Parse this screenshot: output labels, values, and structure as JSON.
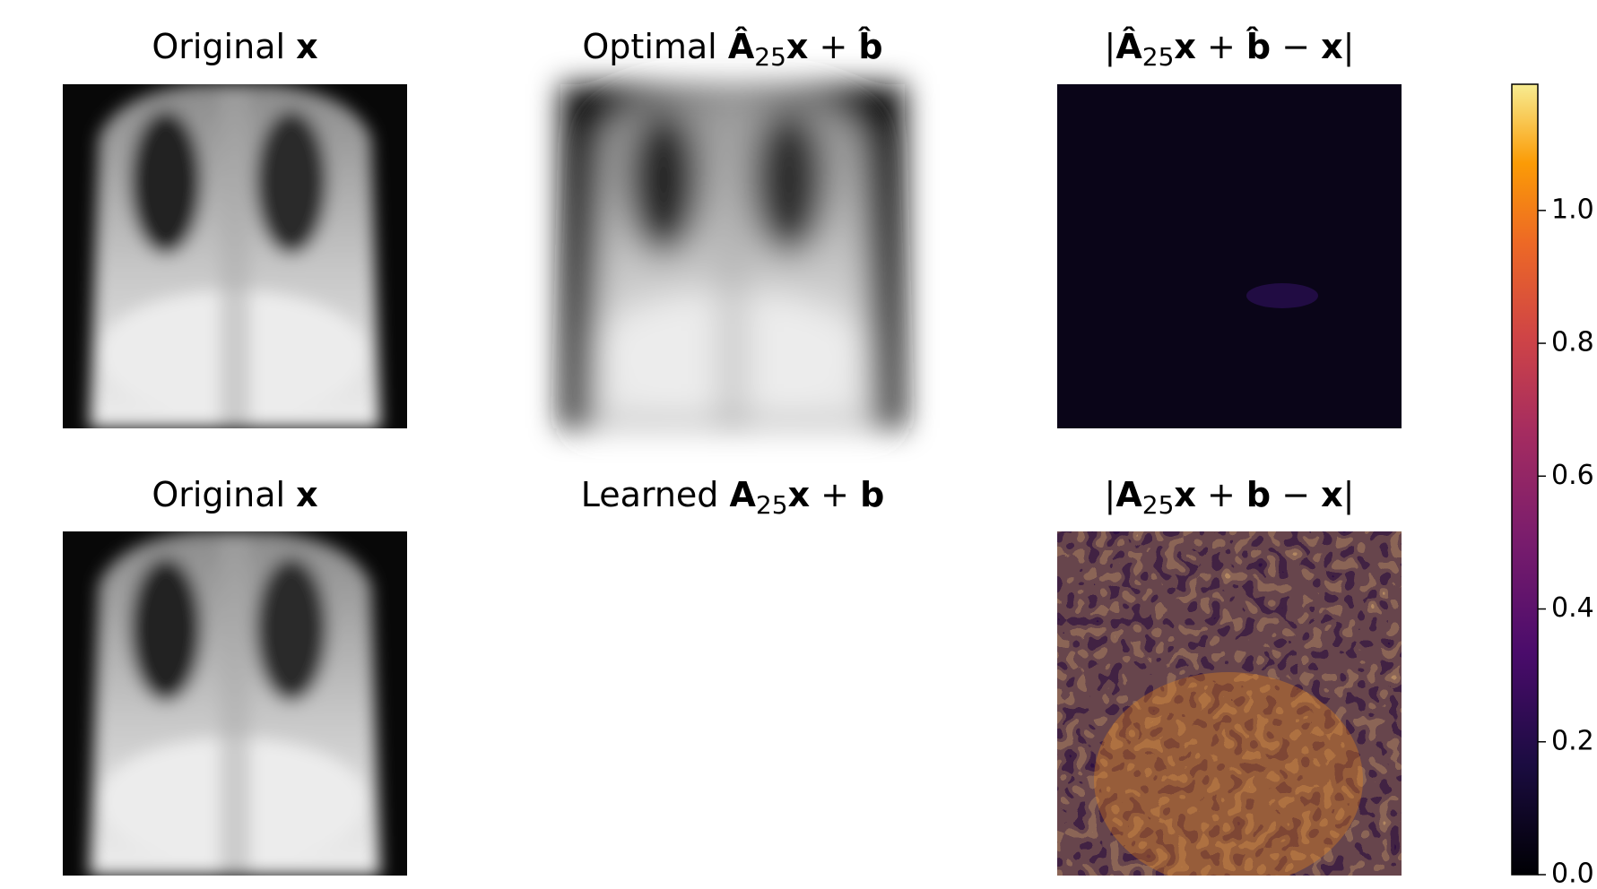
{
  "chart_data": {
    "type": "image-grid",
    "panels": [
      {
        "title": [
          "Original ",
          "x"
        ]
      },
      {
        "title": [
          "Optimal ",
          "Â",
          "25",
          "x",
          " + ",
          "b̂"
        ]
      },
      {
        "title": [
          "|",
          "Â",
          "25",
          "x",
          " + ",
          "b̂",
          " − ",
          "x",
          "|"
        ]
      },
      {
        "title": [
          "Original ",
          "x"
        ]
      },
      {
        "title": [
          "Learned ",
          "A",
          "25",
          "x",
          " + ",
          "b"
        ]
      },
      {
        "title": [
          "|",
          "A",
          "25",
          "x",
          " + ",
          "b",
          " − ",
          "x",
          "|"
        ]
      }
    ],
    "colorbar": {
      "colormap": "inferno",
      "ylim": [
        0,
        1.19
      ],
      "yticks": [
        {
          "value": 0,
          "label": "0.0"
        },
        {
          "value": 0.2,
          "label": "0.2"
        },
        {
          "value": 0.4,
          "label": "0.4"
        },
        {
          "value": 0.6,
          "label": "0.6"
        },
        {
          "value": 0.8,
          "label": "0.8"
        },
        {
          "value": 1.0,
          "label": "1.0"
        }
      ]
    }
  }
}
